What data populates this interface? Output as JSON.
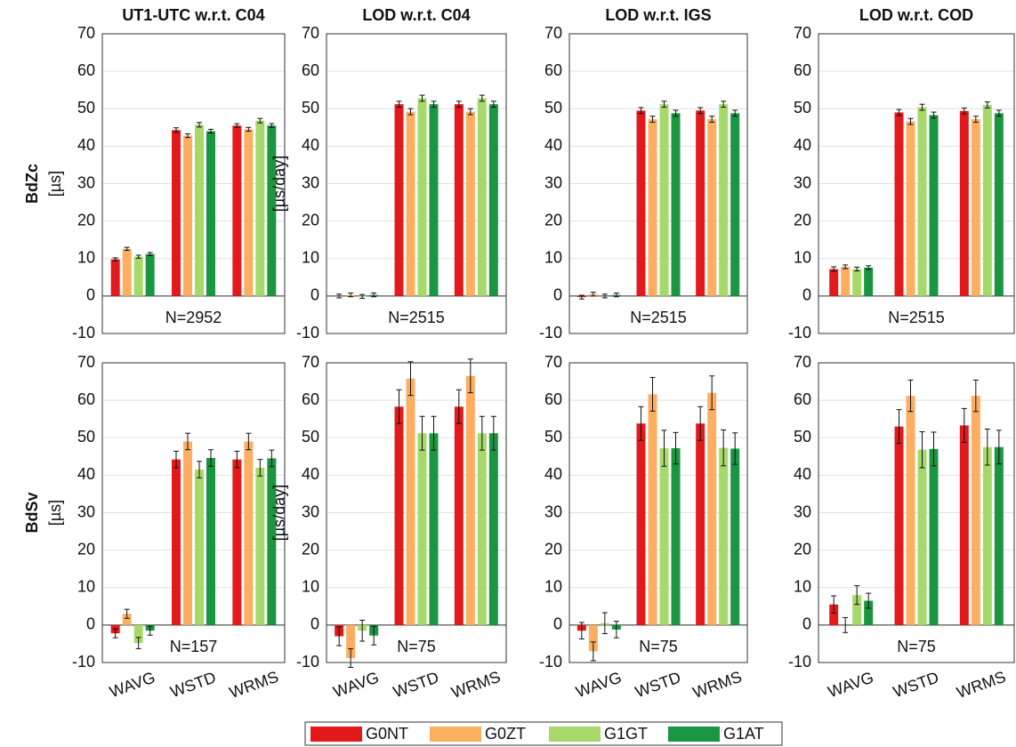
{
  "chart_data": [
    {
      "type": "bar",
      "title": "UT1-UTC w.r.t. C04",
      "row_label": "BdZc",
      "y_label": "[µs]",
      "annotation": "N=2952",
      "ylim": [
        -10,
        70
      ],
      "yticks": [
        -10,
        0,
        10,
        20,
        30,
        40,
        50,
        60,
        70
      ],
      "grid": true,
      "series": [
        {
          "values": [
            9.8,
            44.3,
            45.5
          ],
          "errors": [
            0.4,
            0.6,
            0.5
          ]
        },
        {
          "values": [
            12.6,
            42.8,
            44.5
          ],
          "errors": [
            0.4,
            0.5,
            0.5
          ]
        },
        {
          "values": [
            10.5,
            45.7,
            46.8
          ],
          "errors": [
            0.4,
            0.6,
            0.6
          ]
        },
        {
          "values": [
            11.2,
            44,
            45.5
          ],
          "errors": [
            0.4,
            0.5,
            0.5
          ]
        }
      ]
    },
    {
      "type": "bar",
      "title": "LOD w.r.t. C04",
      "y_label": "[µs/day]",
      "annotation": "N=2515",
      "ylim": [
        -10,
        70
      ],
      "yticks": [
        -10,
        0,
        10,
        20,
        30,
        40,
        50,
        60,
        70
      ],
      "grid": true,
      "series": [
        {
          "values": [
            0,
            51.2,
            51.2
          ],
          "errors": [
            0.5,
            0.8,
            0.8
          ]
        },
        {
          "values": [
            0.3,
            49.2,
            49.2
          ],
          "errors": [
            0.5,
            0.8,
            0.8
          ]
        },
        {
          "values": [
            -0.1,
            52.8,
            52.8
          ],
          "errors": [
            0.5,
            0.8,
            0.8
          ]
        },
        {
          "values": [
            0.3,
            51.2,
            51.2
          ],
          "errors": [
            0.5,
            0.8,
            0.8
          ]
        }
      ]
    },
    {
      "type": "bar",
      "title": "LOD w.r.t. IGS",
      "annotation": "N=2515",
      "ylim": [
        -10,
        70
      ],
      "yticks": [
        -10,
        0,
        10,
        20,
        30,
        40,
        50,
        60,
        70
      ],
      "grid": true,
      "series": [
        {
          "values": [
            -0.3,
            49.5,
            49.5
          ],
          "errors": [
            0.5,
            0.8,
            0.8
          ]
        },
        {
          "values": [
            0.5,
            47.2,
            47.2
          ],
          "errors": [
            0.5,
            0.8,
            0.8
          ]
        },
        {
          "values": [
            0,
            51.2,
            51.2
          ],
          "errors": [
            0.5,
            0.8,
            0.8
          ]
        },
        {
          "values": [
            0.3,
            48.8,
            48.8
          ],
          "errors": [
            0.5,
            0.8,
            0.8
          ]
        }
      ]
    },
    {
      "type": "bar",
      "title": "LOD w.r.t. COD",
      "annotation": "N=2515",
      "ylim": [
        -10,
        70
      ],
      "yticks": [
        -10,
        0,
        10,
        20,
        30,
        40,
        50,
        60,
        70
      ],
      "grid": true,
      "series": [
        {
          "values": [
            7.2,
            49,
            49.4
          ],
          "errors": [
            0.6,
            0.8,
            0.8
          ]
        },
        {
          "values": [
            7.8,
            46.6,
            47.2
          ],
          "errors": [
            0.5,
            0.8,
            0.8
          ]
        },
        {
          "values": [
            7.2,
            50.4,
            51
          ],
          "errors": [
            0.5,
            0.8,
            0.8
          ]
        },
        {
          "values": [
            7.6,
            48.3,
            48.8
          ],
          "errors": [
            0.5,
            0.8,
            0.8
          ]
        }
      ]
    },
    {
      "type": "bar",
      "row_label": "BdSv",
      "y_label": "[µs]",
      "annotation": "N=157",
      "categories": [
        "WAVG",
        "WSTD",
        "WRMS"
      ],
      "ylim": [
        -10,
        70
      ],
      "yticks": [
        -10,
        0,
        10,
        20,
        30,
        40,
        50,
        60,
        70
      ],
      "grid": true,
      "series": [
        {
          "values": [
            -2.2,
            44.2,
            44.2
          ],
          "errors": [
            1.2,
            2.2,
            2.2
          ]
        },
        {
          "values": [
            3,
            49,
            49
          ],
          "errors": [
            1.2,
            2.2,
            2.2
          ]
        },
        {
          "values": [
            -4.8,
            41.5,
            42
          ],
          "errors": [
            1.5,
            2.2,
            2.2
          ]
        },
        {
          "values": [
            -1.5,
            44.6,
            44.5
          ],
          "errors": [
            1.2,
            2.2,
            2.2
          ]
        }
      ]
    },
    {
      "type": "bar",
      "y_label": "[µs/day]",
      "annotation": "N=75",
      "categories": [
        "WAVG",
        "WSTD",
        "WRMS"
      ],
      "ylim": [
        -10,
        70
      ],
      "yticks": [
        -10,
        0,
        10,
        20,
        30,
        40,
        50,
        60,
        70
      ],
      "grid": true,
      "series": [
        {
          "values": [
            -3,
            58.3,
            58.3
          ],
          "errors": [
            2.5,
            4.5,
            4.5
          ]
        },
        {
          "values": [
            -8.8,
            65.8,
            66.5
          ],
          "errors": [
            2.5,
            4.5,
            4.5
          ]
        },
        {
          "values": [
            -1.5,
            51.2,
            51.2
          ],
          "errors": [
            2.8,
            4.5,
            4.5
          ]
        },
        {
          "values": [
            -2.8,
            51.2,
            51.2
          ],
          "errors": [
            2.5,
            4.5,
            4.5
          ]
        }
      ]
    },
    {
      "type": "bar",
      "annotation": "N=75",
      "categories": [
        "WAVG",
        "WSTD",
        "WRMS"
      ],
      "ylim": [
        -10,
        70
      ],
      "yticks": [
        -10,
        0,
        10,
        20,
        30,
        40,
        50,
        60,
        70
      ],
      "grid": true,
      "series": [
        {
          "values": [
            -1.5,
            53.8,
            53.8
          ],
          "errors": [
            2.2,
            4.5,
            4.5
          ]
        },
        {
          "values": [
            -7,
            61.6,
            62
          ],
          "errors": [
            2.5,
            4.5,
            4.5
          ]
        },
        {
          "values": [
            0.5,
            47.2,
            47.3
          ],
          "errors": [
            2.8,
            4.8,
            4.8
          ]
        },
        {
          "values": [
            -1.2,
            47.2,
            47.1
          ],
          "errors": [
            2.2,
            4.2,
            4.2
          ]
        }
      ]
    },
    {
      "type": "bar",
      "annotation": "N=75",
      "categories": [
        "WAVG",
        "WSTD",
        "WRMS"
      ],
      "ylim": [
        -10,
        70
      ],
      "yticks": [
        -10,
        0,
        10,
        20,
        30,
        40,
        50,
        60,
        70
      ],
      "grid": true,
      "series": [
        {
          "values": [
            5.5,
            53,
            53.3
          ],
          "errors": [
            2.3,
            4.5,
            4.5
          ]
        },
        {
          "values": [
            0,
            61.2,
            61.2
          ],
          "errors": [
            2,
            4.2,
            4.2
          ]
        },
        {
          "values": [
            8,
            46.8,
            47.5
          ],
          "errors": [
            2.5,
            4.8,
            4.8
          ]
        },
        {
          "values": [
            6.5,
            47,
            47.5
          ],
          "errors": [
            2,
            4.5,
            4.5
          ]
        }
      ]
    }
  ],
  "legend": {
    "position": "bottom",
    "items": [
      {
        "name": "G0NT",
        "color": "#e31a1c"
      },
      {
        "name": "G0ZT",
        "color": "#fdae61"
      },
      {
        "name": "G1GT",
        "color": "#a6d96a"
      },
      {
        "name": "G1AT",
        "color": "#1a9641"
      }
    ]
  }
}
